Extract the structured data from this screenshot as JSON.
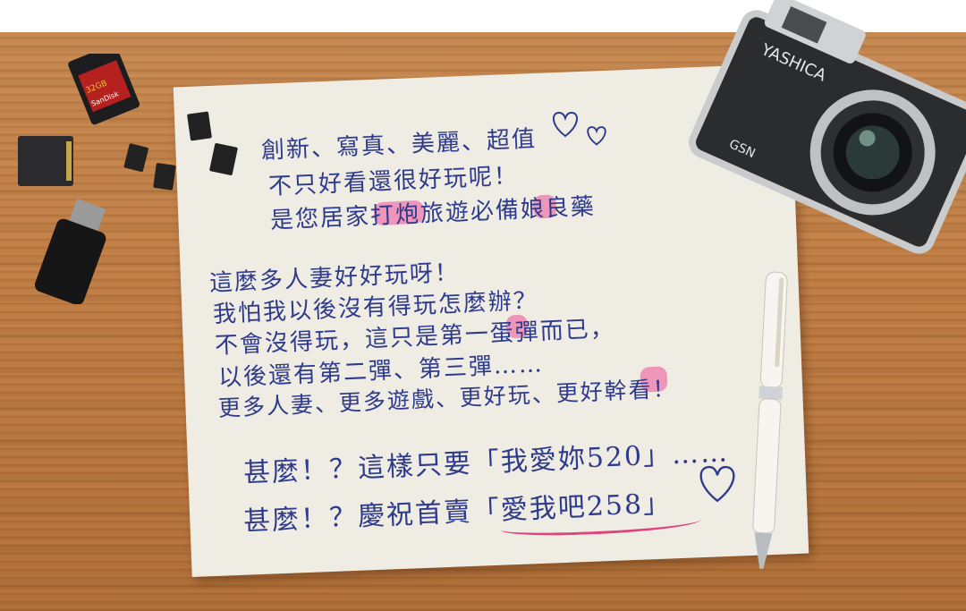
{
  "note": {
    "lines": [
      "創新、寫真、美麗、超值",
      "不只好看還很好玩呢！",
      "是您居家打炮旅遊必備娘良藥",
      "這麼多人妻好好玩呀！",
      "我怕我以後沒有得玩怎麼辦？",
      "不會沒得玩，這只是第一蛋彈而已，",
      "以後還有第二彈、第三彈……",
      "更多人妻、更多遊戲、更好玩、更好幹看！",
      "甚麼！？這樣只要「我愛妳520」……",
      "甚麼！？慶祝首賣「愛我吧258」"
    ]
  },
  "props": {
    "sd_card": {
      "capacity": "32GB",
      "brand": "SanDisk"
    },
    "camera": {
      "brand": "YASHICA",
      "model": "GSN"
    }
  },
  "colors": {
    "ink": "#2e3a8c",
    "highlight": "#ec5096",
    "paper": "#efece4",
    "desk": "#c27f45"
  },
  "icons": [
    "heart-icon",
    "sd-card-icon",
    "micro-sd-icon",
    "usb-drive-icon",
    "camera-icon",
    "pen-icon"
  ]
}
